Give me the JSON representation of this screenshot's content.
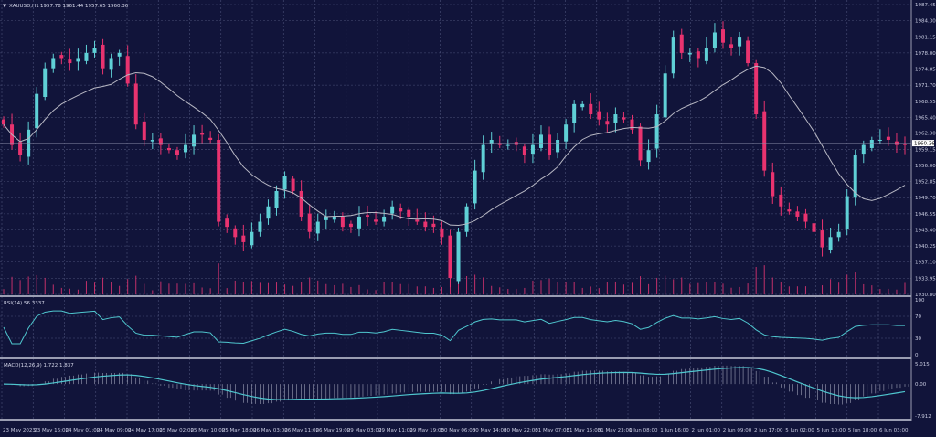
{
  "header": {
    "symbol": "XAUUSD,H1",
    "ohlc": "1957.78 1961.44 1957.65 1960.36"
  },
  "colors": {
    "background": "#11143a",
    "grid": "#4b5078",
    "bull": "#5fd0d6",
    "bear": "#e8336f",
    "ma": "#b8b8c4",
    "indicator": "#4fc7cf",
    "volume": "#c2306a"
  },
  "chart_data": [
    {
      "type": "candlestick",
      "title": "XAUUSD,H1",
      "ylim": [
        1930.8,
        1987.45
      ],
      "y_ticks": [
        "1987.45",
        "1984.30",
        "1981.15",
        "1978.00",
        "1974.85",
        "1971.70",
        "1968.55",
        "1965.40",
        "1962.30",
        "1959.15",
        "1956.00",
        "1952.85",
        "1949.70",
        "1946.55",
        "1943.40",
        "1940.25",
        "1937.10",
        "1933.95",
        "1930.80"
      ],
      "current_price": "1960.36",
      "grid": true,
      "closes": [
        1964,
        1960,
        1958,
        1963,
        1970,
        1975,
        1977,
        1977,
        1976,
        1977,
        1978,
        1979,
        1975,
        1977,
        1978,
        1972,
        1964,
        1961,
        1961,
        1960,
        1959,
        1958,
        1960,
        1962,
        1962,
        1961,
        1945,
        1944,
        1942,
        1941,
        1943,
        1945,
        1948,
        1951,
        1954,
        1951,
        1946,
        1943,
        1945,
        1946,
        1946,
        1944,
        1944,
        1946,
        1946,
        1945,
        1946,
        1948,
        1947,
        1946,
        1945,
        1944,
        1944,
        1942,
        1934,
        1943,
        1948,
        1955,
        1960,
        1961,
        1960,
        1960,
        1960,
        1958,
        1960,
        1962,
        1958,
        1961,
        1964,
        1968,
        1968,
        1966,
        1965,
        1964,
        1966,
        1965,
        1963,
        1957,
        1959,
        1966,
        1974,
        1981,
        1978,
        1978,
        1977,
        1979,
        1982,
        1980,
        1979,
        1981,
        1976,
        1966,
        1955,
        1950,
        1948,
        1947,
        1946,
        1945,
        1943,
        1940,
        1942,
        1943,
        1950,
        1958,
        1960,
        1961,
        1961,
        1961,
        1960,
        1960
      ],
      "x_ticks": [
        "23 May 2023",
        "23 May 16:00",
        "24 May 01:00",
        "24 May 09:00",
        "24 May 17:00",
        "25 May 02:00",
        "25 May 10:00",
        "25 May 18:00",
        "26 May 03:00",
        "26 May 11:00",
        "26 May 19:00",
        "29 May 03:00",
        "29 May 11:00",
        "29 May 19:00",
        "30 May 06:00",
        "30 May 14:00",
        "30 May 22:00",
        "31 May 07:00",
        "31 May 15:00",
        "31 May 23:00",
        "1 Jun 08:00",
        "1 Jun 16:00",
        "2 Jun 01:00",
        "2 Jun 09:00",
        "2 Jun 17:00",
        "5 Jun 02:00",
        "5 Jun 10:00",
        "5 Jun 18:00",
        "6 Jun 03:00"
      ]
    },
    {
      "type": "line",
      "title": "RSI(14) 56.3337",
      "ylim": [
        0,
        100
      ],
      "y_ticks": [
        "100",
        "70",
        "30",
        "0"
      ]
    },
    {
      "type": "line",
      "title": "MACD(12,26,9) 1.722 1.837",
      "ylim": [
        -7.912,
        5.015
      ],
      "y_ticks": [
        "5.015",
        "0.00",
        "-7.912"
      ]
    }
  ]
}
